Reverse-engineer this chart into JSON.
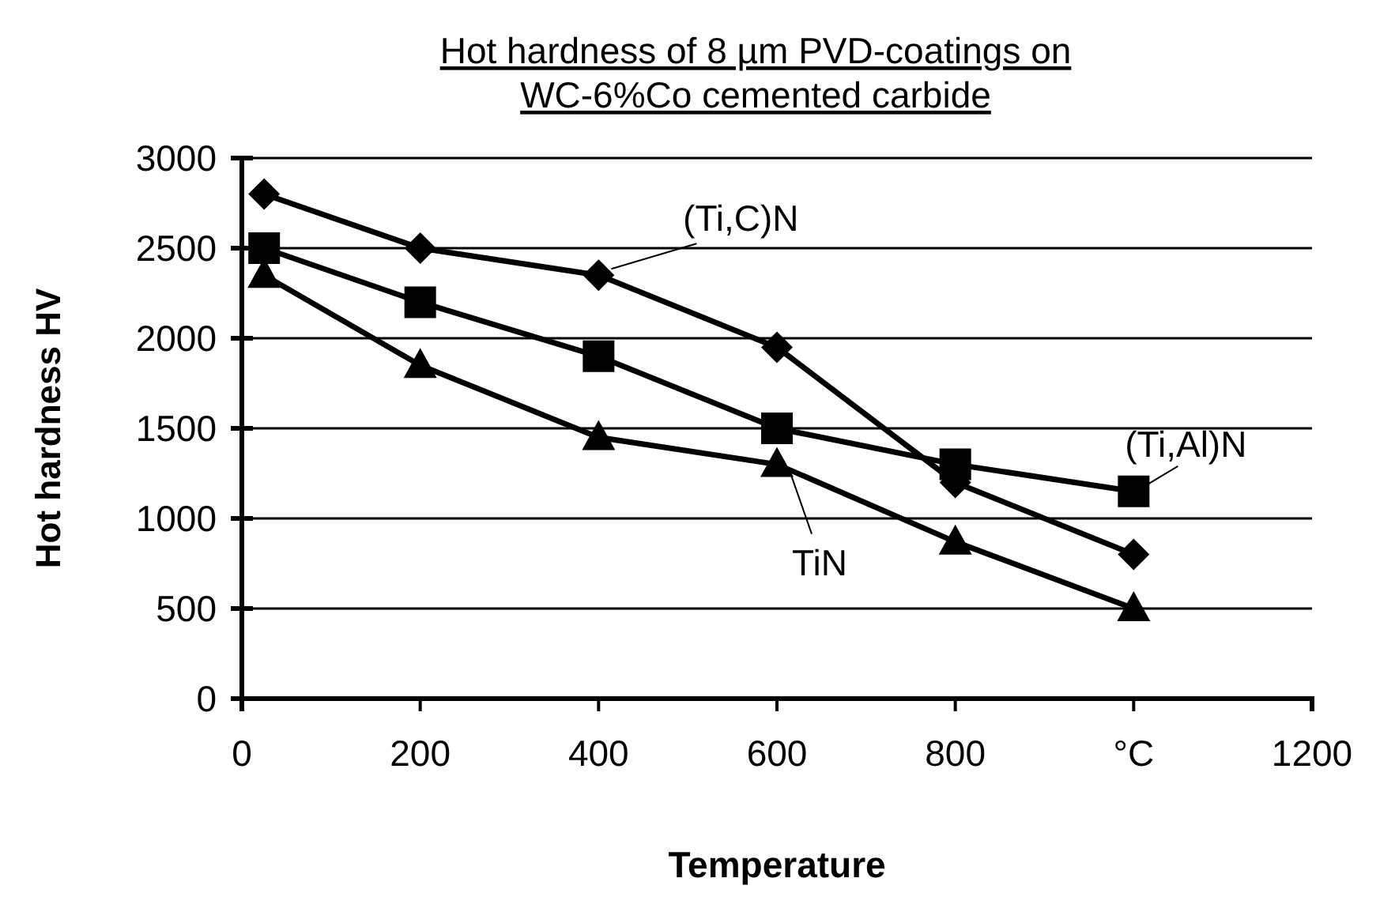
{
  "chart_data": {
    "type": "line",
    "title": "Hot hardness of 8 µm PVD-coatings on\nWC-6%Co cemented carbide",
    "xlabel": "Temperature",
    "ylabel": "Hot hardness HV",
    "x": [
      25,
      200,
      400,
      600,
      800,
      1000
    ],
    "series": [
      {
        "name": "(Ti,C)N",
        "color": "#000000",
        "marker": "diamond",
        "values": [
          2800,
          2500,
          2350,
          1950,
          1200,
          800
        ]
      },
      {
        "name": "(Ti,Al)N",
        "color": "#000000",
        "marker": "square",
        "values": [
          2500,
          2200,
          1900,
          1500,
          1300,
          1150
        ]
      },
      {
        "name": "TiN",
        "color": "#000000",
        "marker": "triangle",
        "values": [
          2350,
          1850,
          1450,
          1300,
          870,
          500
        ]
      }
    ],
    "xlim": [
      0,
      1200
    ],
    "xticks": [
      0,
      200,
      400,
      600,
      800,
      {
        "value": 1000,
        "label": "°C"
      },
      1200
    ],
    "ylim": [
      0,
      3000
    ],
    "yticks": [
      0,
      500,
      1000,
      1500,
      2000,
      2500,
      3000
    ],
    "grid": "y"
  }
}
